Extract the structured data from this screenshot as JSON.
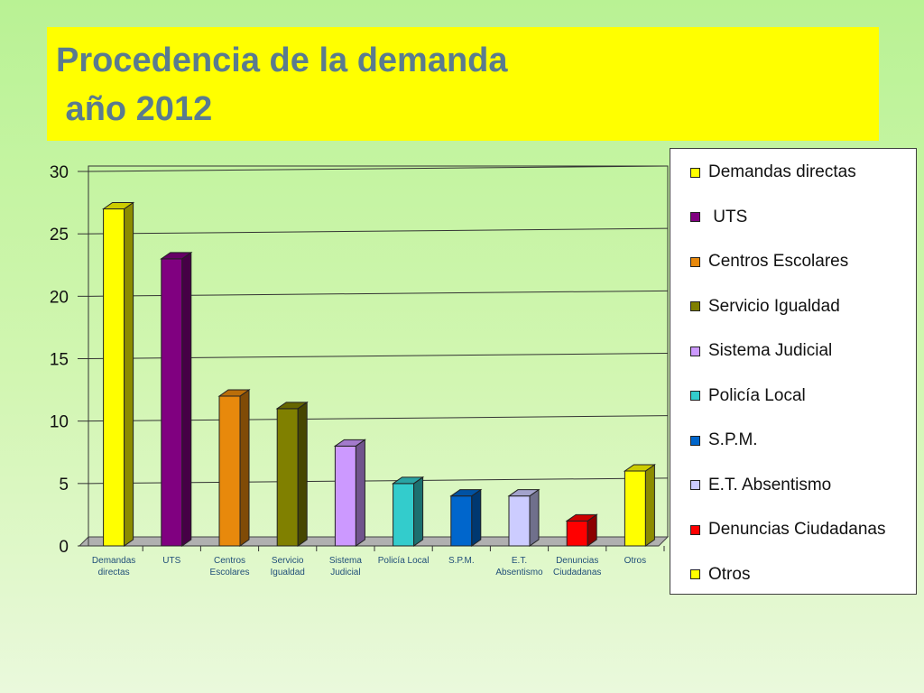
{
  "slide": {
    "title_line1": "Procedencia de la demanda",
    "title_line2": " año 2012"
  },
  "chart_data": {
    "type": "bar",
    "title": "",
    "xlabel": "",
    "ylabel": "",
    "ylim": [
      0,
      30
    ],
    "yticks": [
      0,
      5,
      10,
      15,
      20,
      25,
      30
    ],
    "grid": true,
    "legend_position": "right",
    "categories": [
      [
        "Demandas",
        "directas"
      ],
      [
        "UTS"
      ],
      [
        "Centros",
        "Escolares"
      ],
      [
        "Servicio",
        "Igualdad"
      ],
      [
        "Sistema",
        "Judicial"
      ],
      [
        "Policía Local"
      ],
      [
        "S.P.M."
      ],
      [
        "E.T.",
        "Absentismo"
      ],
      [
        "Denuncias",
        "Ciudadanas"
      ],
      [
        "Otros"
      ]
    ],
    "values": [
      27,
      23,
      12,
      11,
      8,
      5,
      4,
      4,
      2,
      6
    ],
    "colors": [
      "#ffff00",
      "#800080",
      "#e8890c",
      "#808000",
      "#cc99ff",
      "#33cccc",
      "#0066cc",
      "#ccccff",
      "#ff0000",
      "#ffff00"
    ],
    "legend": [
      {
        "label": "Demandas directas",
        "color": "#ffff00"
      },
      {
        "label": " UTS",
        "color": "#800080"
      },
      {
        "label": "Centros Escolares",
        "color": "#e8890c"
      },
      {
        "label": "Servicio Igualdad",
        "color": "#808000"
      },
      {
        "label": "Sistema Judicial",
        "color": "#cc99ff"
      },
      {
        "label": "Policía Local",
        "color": "#33cccc"
      },
      {
        "label": "S.P.M.",
        "color": "#0066cc"
      },
      {
        "label": "E.T. Absentismo",
        "color": "#ccccff"
      },
      {
        "label": "Denuncias Ciudadanas",
        "color": "#ff0000"
      },
      {
        "label": "Otros",
        "color": "#ffff00"
      }
    ]
  }
}
